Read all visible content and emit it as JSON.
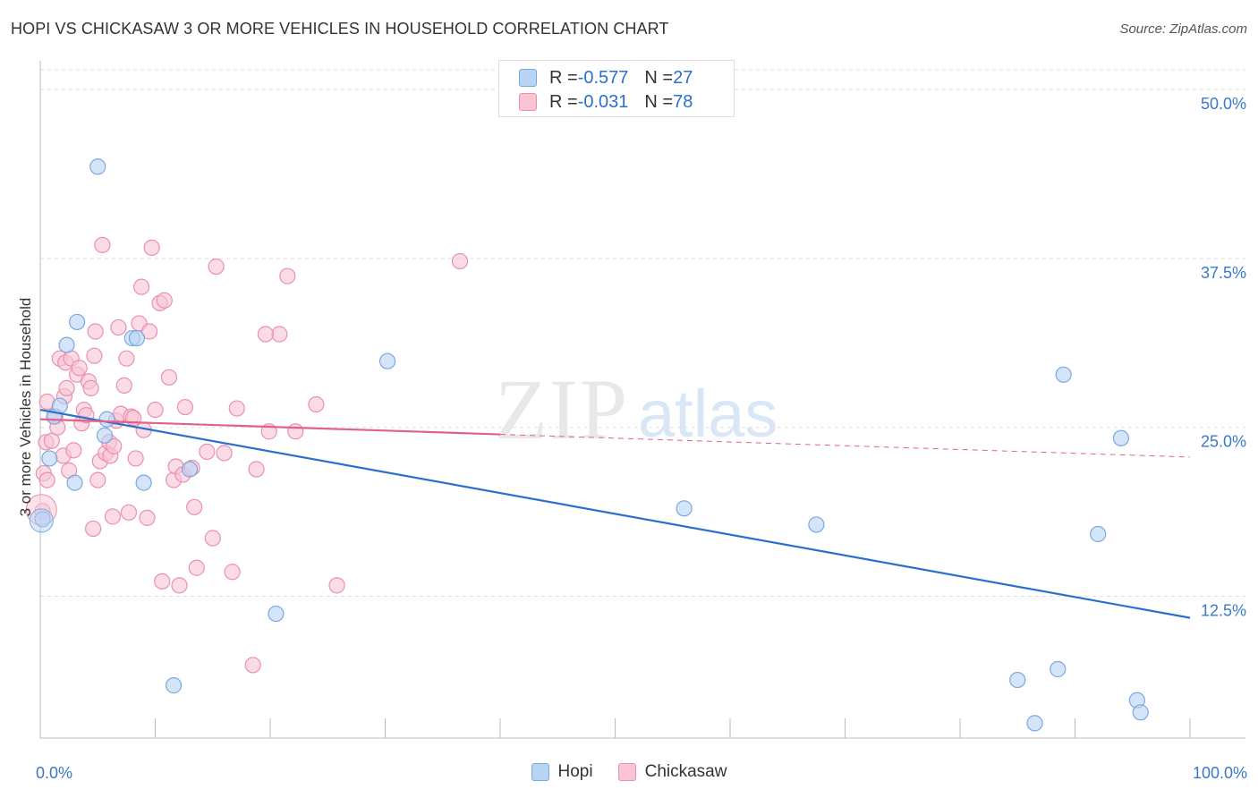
{
  "title": "HOPI VS CHICKASAW 3 OR MORE VEHICLES IN HOUSEHOLD CORRELATION CHART",
  "source": "Source: ZipAtlas.com",
  "watermark": {
    "zip": "ZIP",
    "atlas": "atlas"
  },
  "legend": {
    "hopi": {
      "r_label": "R = ",
      "r_value": "-0.577",
      "n_label": "N = ",
      "n_value": "27"
    },
    "chickasaw": {
      "r_label": "R = ",
      "r_value": "-0.031",
      "n_label": "N = ",
      "n_value": "78"
    }
  },
  "colors": {
    "hopi_fill": "#b8d4f5",
    "hopi_stroke": "#7aa8e0",
    "hopi_line": "#2b6fcc",
    "chickasaw_fill": "#f9c4d5",
    "chickasaw_stroke": "#eb8fae",
    "chickasaw_line": "#e0628c",
    "tick_label": "#3a78c9",
    "grid": "#dddddd"
  },
  "chart_data": {
    "type": "scatter",
    "title": "HOPI VS CHICKASAW 3 OR MORE VEHICLES IN HOUSEHOLD CORRELATION CHART",
    "xlabel": "",
    "ylabel": "3 or more Vehicles in Household",
    "xlim": [
      0,
      100
    ],
    "ylim": [
      2.0,
      52.0
    ],
    "x_tick_labels": [
      {
        "value": 0,
        "label": "0.0%"
      },
      {
        "value": 100,
        "label": "100.0%"
      }
    ],
    "y_ticks": [
      {
        "value": 12.5,
        "label": "12.5%"
      },
      {
        "value": 25.0,
        "label": "25.0%"
      },
      {
        "value": 37.5,
        "label": "37.5%"
      },
      {
        "value": 50.0,
        "label": "50.0%"
      }
    ],
    "legend_position": "bottom-center",
    "series": [
      {
        "name": "Hopi",
        "trend": {
          "x0": 0.0,
          "y0": 26.3,
          "x1": 100.0,
          "y1": 10.9,
          "dashed_from": null
        },
        "points": [
          [
            5.0,
            44.3
          ],
          [
            0.2,
            18.2
          ],
          [
            0.8,
            22.7
          ],
          [
            1.2,
            25.8
          ],
          [
            1.7,
            26.6
          ],
          [
            2.3,
            31.1
          ],
          [
            3.0,
            20.9
          ],
          [
            3.2,
            32.8
          ],
          [
            5.6,
            24.4
          ],
          [
            5.8,
            25.6
          ],
          [
            8.0,
            31.6
          ],
          [
            8.4,
            31.6
          ],
          [
            9.0,
            20.9
          ],
          [
            11.6,
            5.9
          ],
          [
            13.0,
            21.9
          ],
          [
            20.5,
            11.2
          ],
          [
            30.2,
            29.9
          ],
          [
            56.0,
            19.0
          ],
          [
            67.5,
            17.8
          ],
          [
            85.0,
            6.3
          ],
          [
            86.5,
            3.1
          ],
          [
            88.5,
            7.1
          ],
          [
            89.0,
            28.9
          ],
          [
            92.0,
            17.1
          ],
          [
            94.0,
            24.2
          ],
          [
            95.4,
            4.8
          ],
          [
            95.7,
            3.9
          ]
        ]
      },
      {
        "name": "Chickasaw",
        "trend": {
          "x0": 0.0,
          "y0": 25.6,
          "x1": 100.0,
          "y1": 22.8,
          "dashed_from": 40.0
        },
        "points": [
          [
            0.2,
            18.8
          ],
          [
            0.3,
            21.6
          ],
          [
            0.5,
            23.9
          ],
          [
            0.6,
            26.9
          ],
          [
            0.6,
            21.1
          ],
          [
            1.0,
            24.0
          ],
          [
            1.3,
            25.8
          ],
          [
            1.5,
            25.0
          ],
          [
            1.7,
            30.1
          ],
          [
            2.0,
            22.9
          ],
          [
            2.1,
            27.3
          ],
          [
            2.2,
            29.8
          ],
          [
            2.3,
            27.9
          ],
          [
            2.5,
            21.8
          ],
          [
            2.7,
            30.1
          ],
          [
            2.9,
            23.3
          ],
          [
            3.2,
            28.9
          ],
          [
            3.4,
            29.4
          ],
          [
            3.6,
            25.3
          ],
          [
            3.8,
            26.3
          ],
          [
            4.0,
            25.9
          ],
          [
            4.2,
            28.4
          ],
          [
            4.4,
            27.9
          ],
          [
            4.6,
            17.5
          ],
          [
            4.7,
            30.3
          ],
          [
            4.8,
            32.1
          ],
          [
            5.0,
            21.1
          ],
          [
            5.2,
            22.5
          ],
          [
            5.4,
            38.5
          ],
          [
            5.7,
            23.1
          ],
          [
            6.0,
            23.9
          ],
          [
            6.1,
            22.9
          ],
          [
            6.3,
            18.4
          ],
          [
            6.4,
            23.6
          ],
          [
            6.6,
            25.5
          ],
          [
            6.8,
            32.4
          ],
          [
            7.0,
            26.0
          ],
          [
            7.3,
            28.1
          ],
          [
            7.5,
            30.1
          ],
          [
            7.7,
            18.7
          ],
          [
            7.9,
            25.8
          ],
          [
            8.1,
            25.7
          ],
          [
            8.3,
            22.7
          ],
          [
            8.6,
            32.7
          ],
          [
            8.8,
            35.4
          ],
          [
            9.0,
            24.8
          ],
          [
            9.3,
            18.3
          ],
          [
            9.5,
            32.1
          ],
          [
            9.7,
            38.3
          ],
          [
            10.0,
            26.3
          ],
          [
            10.4,
            34.2
          ],
          [
            10.6,
            13.6
          ],
          [
            10.8,
            34.4
          ],
          [
            11.2,
            28.7
          ],
          [
            11.6,
            21.1
          ],
          [
            11.8,
            22.1
          ],
          [
            12.1,
            13.3
          ],
          [
            12.4,
            21.5
          ],
          [
            12.6,
            26.5
          ],
          [
            13.2,
            22.0
          ],
          [
            13.6,
            14.6
          ],
          [
            13.4,
            19.1
          ],
          [
            14.5,
            23.2
          ],
          [
            15.0,
            16.8
          ],
          [
            15.3,
            36.9
          ],
          [
            16.0,
            23.1
          ],
          [
            16.7,
            14.3
          ],
          [
            17.1,
            26.4
          ],
          [
            18.5,
            7.4
          ],
          [
            18.8,
            21.9
          ],
          [
            19.9,
            24.7
          ],
          [
            20.8,
            31.9
          ],
          [
            21.5,
            36.2
          ],
          [
            22.2,
            24.7
          ],
          [
            24.0,
            26.7
          ],
          [
            25.8,
            13.3
          ],
          [
            36.5,
            37.3
          ],
          [
            19.6,
            31.9
          ]
        ]
      }
    ]
  }
}
